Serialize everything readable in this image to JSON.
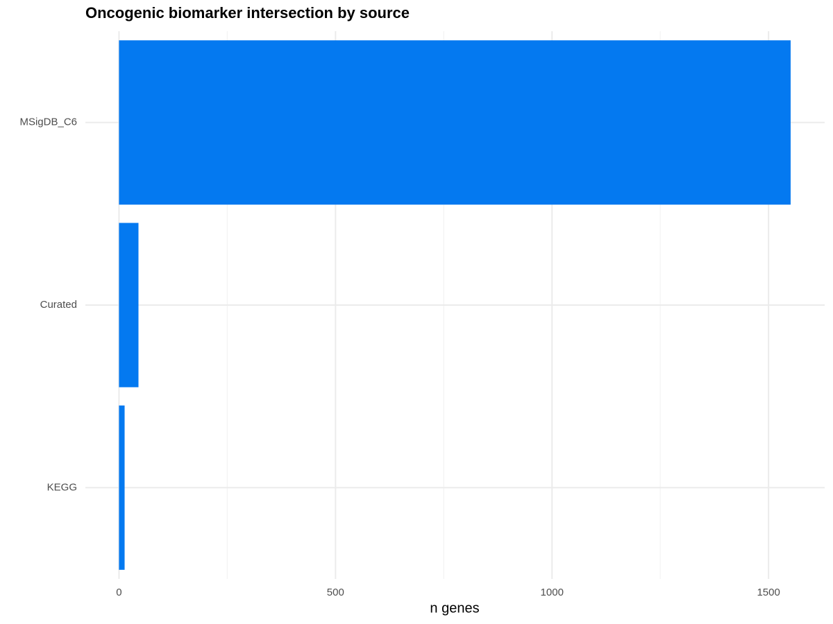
{
  "chart_data": {
    "type": "bar",
    "orientation": "horizontal",
    "title": "Oncogenic biomarker intersection by source",
    "x_label": "n genes",
    "categories": [
      "MSigDB_C6",
      "Curated",
      "KEGG"
    ],
    "values": [
      1551,
      45,
      13
    ],
    "color": "#0479f0",
    "xlim": [
      -77.6,
      1629.6
    ],
    "xticks": [
      0,
      500,
      1000,
      1500
    ],
    "minor_xticks": [
      250,
      750,
      1250
    ],
    "grid": true
  }
}
